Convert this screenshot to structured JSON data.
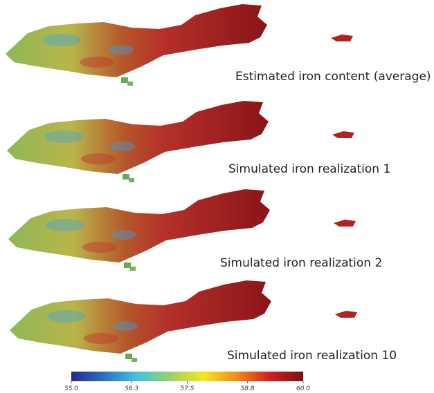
{
  "panels": [
    {
      "caption": "Estimated iron content (average)"
    },
    {
      "caption": "Simulated iron realization 1"
    },
    {
      "caption": "Simulated iron realization 2"
    },
    {
      "caption": "Simulated iron realization 10"
    }
  ],
  "colorbar": {
    "range": [
      55,
      60
    ],
    "ticks": [
      {
        "value": 55,
        "label": "55.0"
      },
      {
        "value": 56.3,
        "label": "56.3"
      },
      {
        "value": 57.5,
        "label": "57.5"
      },
      {
        "value": 58.8,
        "label": "58.8"
      },
      {
        "value": 60,
        "label": "60.0"
      }
    ],
    "colors": [
      "#1f2a8c",
      "#2f6fc0",
      "#46c4e0",
      "#9ccf6a",
      "#f2e71e",
      "#f08a1a",
      "#d11f1f",
      "#7a0f12"
    ]
  }
}
